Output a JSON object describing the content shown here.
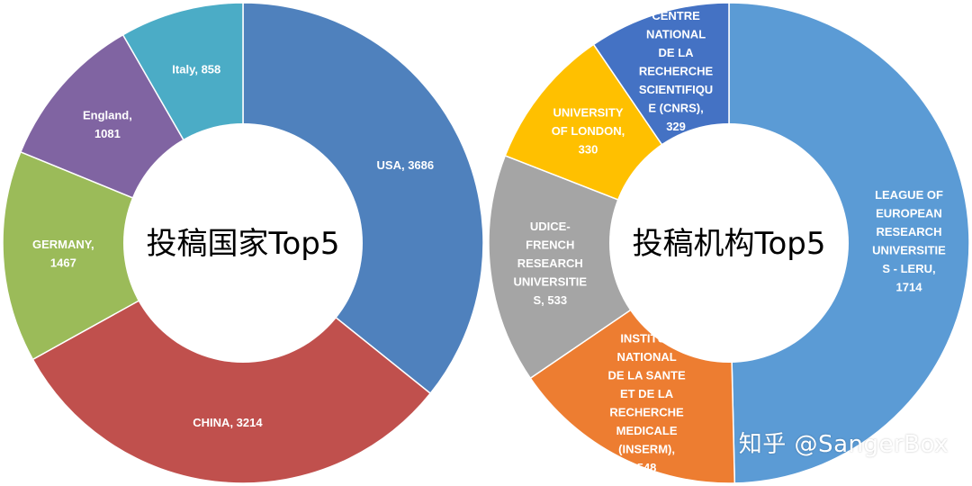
{
  "chart_data": [
    {
      "type": "pie",
      "variant": "donut",
      "center_label": "投稿国家Top5",
      "start": "top-center",
      "direction": "clockwise",
      "slices": [
        {
          "name": "USA",
          "value": 3686,
          "label": [
            "USA, 3686"
          ],
          "color": "#4F81BD"
        },
        {
          "name": "CHINA",
          "value": 3214,
          "label": [
            "CHINA, 3214"
          ],
          "color": "#C0504D"
        },
        {
          "name": "GERMANY",
          "value": 1467,
          "label": [
            "GERMANY,",
            "1467"
          ],
          "color": "#9BBB59"
        },
        {
          "name": "England",
          "value": 1081,
          "label": [
            "England,",
            "1081"
          ],
          "color": "#8064A2"
        },
        {
          "name": "Italy",
          "value": 858,
          "label": [
            "Italy, 858"
          ],
          "color": "#4BACC6"
        }
      ]
    },
    {
      "type": "pie",
      "variant": "donut",
      "center_label": "投稿机构Top5",
      "start": "top-center",
      "direction": "clockwise",
      "slices": [
        {
          "name": "LEAGUE OF EUROPEAN RESEARCH UNIVERSITIES - LERU",
          "value": 1714,
          "label": [
            "LEAGUE OF",
            "EUROPEAN",
            "RESEARCH",
            "UNIVERSITIE",
            "S - LERU,",
            "1714"
          ],
          "color": "#5B9BD5"
        },
        {
          "name": "INSTITUT NATIONAL DE LA SANTE ET DE LA RECHERCHE MEDICALE (INSERM)",
          "value": 548,
          "label": [
            "INSTITUT",
            "NATIONAL",
            "DE LA SANTE",
            "ET DE LA",
            "RECHERCHE",
            "MEDICALE",
            "(INSERM),",
            "548"
          ],
          "color": "#ED7D31"
        },
        {
          "name": "UDICE-FRENCH RESEARCH UNIVERSITIES",
          "value": 533,
          "label": [
            "UDICE-",
            "FRENCH",
            "RESEARCH",
            "UNIVERSITIE",
            "S, 533"
          ],
          "color": "#A5A5A5"
        },
        {
          "name": "UNIVERSITY OF LONDON",
          "value": 330,
          "label": [
            "UNIVERSITY",
            "OF LONDON,",
            "330"
          ],
          "color": "#FFC000"
        },
        {
          "name": "CENTRE NATIONAL DE LA RECHERCHE SCIENTIFIQUE (CNRS)",
          "value": 329,
          "label": [
            "CENTRE",
            "NATIONAL",
            "DE LA",
            "RECHERCHE",
            "SCIENTIFIQU",
            "E (CNRS),",
            "329"
          ],
          "color": "#4472C4"
        }
      ]
    }
  ],
  "watermark": "知乎 @SangerBox"
}
